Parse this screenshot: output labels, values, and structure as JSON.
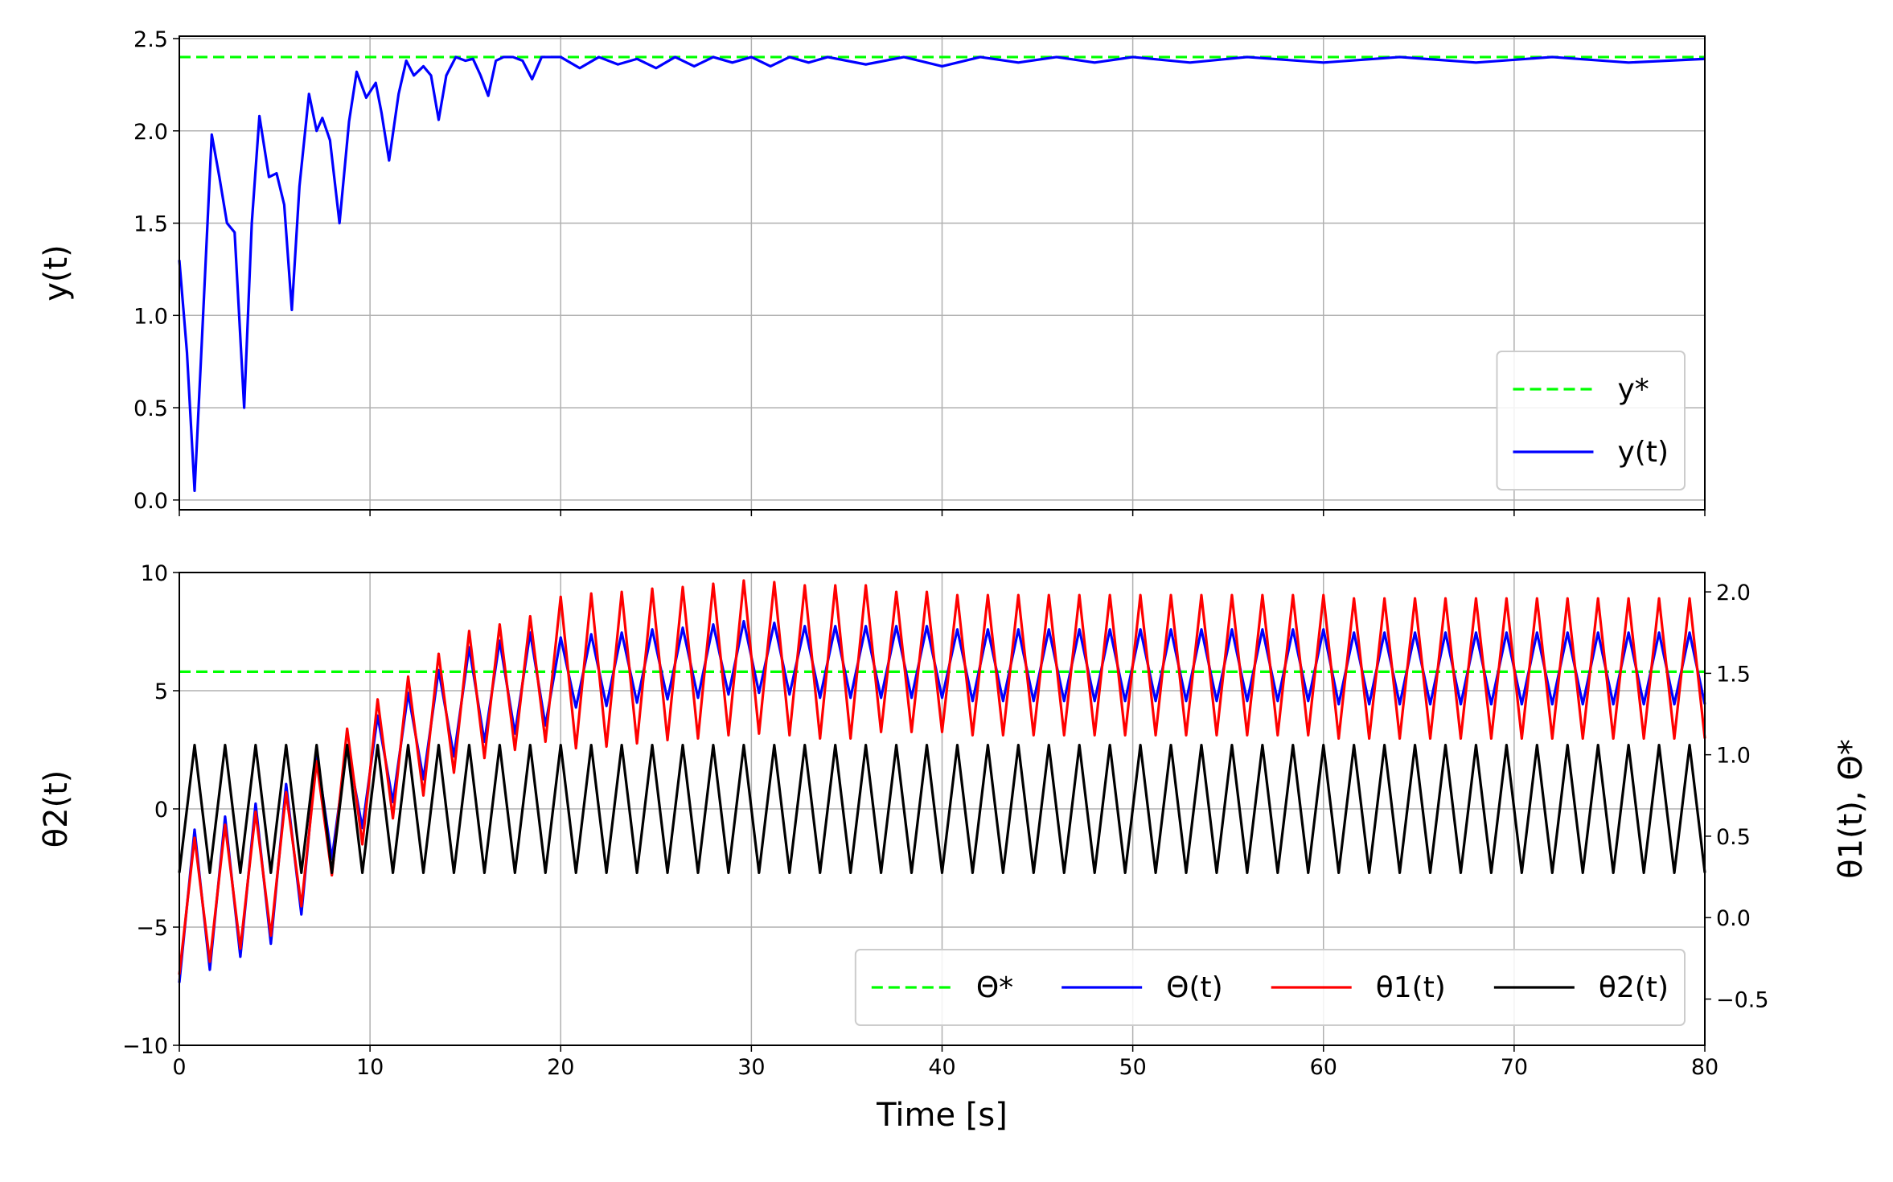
{
  "chart_data": [
    {
      "type": "line",
      "ylabel": "y(t)",
      "grid": true,
      "legend": "lower right",
      "legend_ncol": 1,
      "xlim": [
        0,
        80
      ],
      "xticks": [
        0,
        10,
        20,
        30,
        40,
        50,
        60,
        70,
        80
      ],
      "ylim": [
        -0.053,
        2.513
      ],
      "yticks": [
        {
          "value": 0,
          "label": "0.0"
        },
        0.5,
        {
          "value": 1,
          "label": "1.0"
        },
        1.5,
        {
          "value": 2,
          "label": "2.0"
        },
        2.5
      ],
      "x": [
        0,
        0.4,
        0.8,
        1.2,
        1.7,
        2.1,
        2.5,
        2.9,
        3.4,
        3.8,
        4.2,
        4.7,
        5.1,
        5.5,
        5.9,
        6.3,
        6.8,
        7.2,
        7.5,
        7.9,
        8.4,
        8.9,
        9.3,
        9.8,
        10.3,
        10.6,
        11,
        11.5,
        11.9,
        12.3,
        12.8,
        13.2,
        13.6,
        14,
        14.5,
        15,
        15.4,
        15.8,
        16.2,
        16.6,
        17,
        17.5,
        18,
        18.5,
        19,
        20,
        21,
        22,
        23,
        24,
        25,
        26,
        27,
        28,
        29,
        30,
        31,
        32,
        33,
        34,
        36,
        38,
        40,
        42,
        44,
        46,
        48,
        50,
        53,
        56,
        60,
        64,
        68,
        72,
        76,
        80
      ],
      "series": [
        {
          "name": "y*",
          "color": "#00ff00",
          "dash": true,
          "x": [
            0,
            80
          ],
          "values": [
            2.4,
            2.4
          ]
        },
        {
          "name": "y(t)",
          "color": "#0000ff",
          "dash": false,
          "values": [
            1.3,
            0.8,
            0.05,
            0.9,
            1.98,
            1.75,
            1.5,
            1.45,
            0.5,
            1.5,
            2.08,
            1.75,
            1.77,
            1.6,
            1.03,
            1.7,
            2.2,
            2.0,
            2.07,
            1.95,
            1.5,
            2.05,
            2.32,
            2.18,
            2.26,
            2.1,
            1.84,
            2.2,
            2.38,
            2.3,
            2.35,
            2.3,
            2.06,
            2.3,
            2.4,
            2.38,
            2.39,
            2.3,
            2.19,
            2.38,
            2.4,
            2.4,
            2.38,
            2.28,
            2.4,
            2.4,
            2.34,
            2.4,
            2.36,
            2.39,
            2.34,
            2.4,
            2.35,
            2.4,
            2.37,
            2.4,
            2.35,
            2.4,
            2.37,
            2.4,
            2.36,
            2.4,
            2.35,
            2.4,
            2.37,
            2.4,
            2.37,
            2.4,
            2.37,
            2.4,
            2.37,
            2.4,
            2.37,
            2.4,
            2.37,
            2.39
          ]
        }
      ]
    },
    {
      "type": "line",
      "xlabel": "Time [s]",
      "ylabel": "θ2(t)",
      "y2label": "θ1(t), Θ*",
      "grid": true,
      "legend": "lower right",
      "legend_ncol": 4,
      "xlim": [
        0,
        80
      ],
      "xticks": [
        0,
        10,
        20,
        30,
        40,
        50,
        60,
        70,
        80
      ],
      "ylim": [
        -10,
        10
      ],
      "yticks": [
        {
          "value": -10,
          "label": "−10"
        },
        {
          "value": -5,
          "label": "−5"
        },
        0,
        5,
        10
      ],
      "y2lim": [
        -0.784,
        2.119
      ],
      "y2ticks": [
        {
          "value": -0.5,
          "label": "−0.5"
        },
        {
          "value": 0,
          "label": "0.0"
        },
        0.5,
        {
          "value": 1,
          "label": "1.0"
        },
        1.5,
        {
          "value": 2,
          "label": "2.0"
        }
      ],
      "x": [
        0,
        0.8,
        1.6,
        2.4,
        3.2,
        4,
        4.8,
        5.6,
        6.4,
        7.2,
        8,
        8.8,
        9.6,
        10.4,
        11.2,
        12,
        12.8,
        13.6,
        14.4,
        15.2,
        16,
        16.8,
        17.6,
        18.4,
        19.2,
        20,
        20.8,
        21.6,
        22.4,
        23.2,
        24,
        24.8,
        25.6,
        26.4,
        27.2,
        28,
        28.8,
        29.6,
        30.4,
        31.2,
        32,
        32.8,
        33.6,
        34.4,
        35.2,
        36,
        36.8,
        37.6,
        38.4,
        39.2,
        40,
        40.8,
        41.6,
        42.4,
        43.2,
        44,
        44.8,
        45.6,
        46.4,
        47.2,
        48,
        48.8,
        49.6,
        50.4,
        51.2,
        52,
        52.8,
        53.6,
        54.4,
        55.2,
        56,
        56.8,
        57.6,
        58.4,
        59.2,
        60,
        60.8,
        61.6,
        62.4,
        63.2,
        64,
        64.8,
        65.6,
        66.4,
        67.2,
        68,
        68.8,
        69.6,
        70.4,
        71.2,
        72,
        72.8,
        73.6,
        74.4,
        75.2,
        76,
        76.8,
        77.6,
        78.4,
        79.2,
        80
      ],
      "series": [
        {
          "name": "Θ*",
          "color": "#00ff00",
          "dash": true,
          "axis": "y2",
          "x": [
            0,
            80
          ],
          "values": [
            1.51,
            1.51
          ]
        },
        {
          "name": "Θ(t)",
          "color": "#0000ff",
          "dash": false,
          "axis": "y2",
          "values": [
            -0.4,
            0.54,
            -0.32,
            0.62,
            -0.24,
            0.7,
            -0.16,
            0.82,
            0.02,
            1.01,
            0.36,
            1.06,
            0.55,
            1.24,
            0.71,
            1.38,
            0.85,
            1.52,
            0.99,
            1.66,
            1.08,
            1.7,
            1.13,
            1.75,
            1.18,
            1.72,
            1.29,
            1.74,
            1.3,
            1.75,
            1.32,
            1.77,
            1.34,
            1.78,
            1.35,
            1.8,
            1.37,
            1.82,
            1.38,
            1.81,
            1.37,
            1.79,
            1.35,
            1.79,
            1.35,
            1.79,
            1.35,
            1.79,
            1.35,
            1.79,
            1.35,
            1.77,
            1.33,
            1.77,
            1.33,
            1.77,
            1.33,
            1.77,
            1.33,
            1.77,
            1.33,
            1.77,
            1.33,
            1.77,
            1.33,
            1.77,
            1.33,
            1.77,
            1.33,
            1.77,
            1.33,
            1.77,
            1.33,
            1.77,
            1.33,
            1.77,
            1.31,
            1.75,
            1.31,
            1.75,
            1.31,
            1.75,
            1.31,
            1.75,
            1.31,
            1.75,
            1.31,
            1.75,
            1.31,
            1.75,
            1.31,
            1.75,
            1.31,
            1.75,
            1.31,
            1.75,
            1.31,
            1.75,
            1.31,
            1.75,
            1.31
          ]
        },
        {
          "name": "θ1(t)",
          "color": "#ff0000",
          "dash": false,
          "axis": "y2",
          "values": [
            -0.35,
            0.49,
            -0.27,
            0.57,
            -0.19,
            0.65,
            -0.11,
            0.77,
            0.07,
            0.96,
            0.26,
            1.16,
            0.45,
            1.34,
            0.61,
            1.48,
            0.75,
            1.62,
            0.89,
            1.76,
            0.98,
            1.8,
            1.03,
            1.85,
            1.08,
            1.97,
            1.04,
            1.99,
            1.05,
            2.0,
            1.07,
            2.02,
            1.09,
            2.03,
            1.1,
            2.05,
            1.12,
            2.07,
            1.13,
            2.06,
            1.12,
            2.04,
            1.1,
            2.04,
            1.1,
            2.04,
            1.14,
            2.0,
            1.14,
            2.0,
            1.14,
            1.98,
            1.12,
            1.98,
            1.12,
            1.98,
            1.12,
            1.98,
            1.12,
            1.98,
            1.12,
            1.98,
            1.12,
            1.98,
            1.12,
            1.98,
            1.12,
            1.98,
            1.12,
            1.98,
            1.12,
            1.98,
            1.12,
            1.98,
            1.12,
            1.98,
            1.1,
            1.96,
            1.1,
            1.96,
            1.1,
            1.96,
            1.1,
            1.96,
            1.1,
            1.96,
            1.1,
            1.96,
            1.1,
            1.96,
            1.1,
            1.96,
            1.1,
            1.96,
            1.1,
            1.96,
            1.1,
            1.96,
            1.1,
            1.96,
            1.1
          ]
        },
        {
          "name": "θ2(t)",
          "color": "#000000",
          "dash": false,
          "values": [
            -2.7,
            2.7,
            -2.7,
            2.7,
            -2.7,
            2.7,
            -2.7,
            2.7,
            -2.7,
            2.7,
            -2.7,
            2.7,
            -2.7,
            2.7,
            -2.7,
            2.7,
            -2.7,
            2.7,
            -2.7,
            2.7,
            -2.7,
            2.7,
            -2.7,
            2.7,
            -2.7,
            2.7,
            -2.7,
            2.7,
            -2.7,
            2.7,
            -2.7,
            2.7,
            -2.7,
            2.7,
            -2.7,
            2.7,
            -2.7,
            2.7,
            -2.7,
            2.7,
            -2.7,
            2.7,
            -2.7,
            2.7,
            -2.7,
            2.7,
            -2.7,
            2.7,
            -2.7,
            2.7,
            -2.7,
            2.7,
            -2.7,
            2.7,
            -2.7,
            2.7,
            -2.7,
            2.7,
            -2.7,
            2.7,
            -2.7,
            2.7,
            -2.7,
            2.7,
            -2.7,
            2.7,
            -2.7,
            2.7,
            -2.7,
            2.7,
            -2.7,
            2.7,
            -2.7,
            2.7,
            -2.7,
            2.7,
            -2.7,
            2.7,
            -2.7,
            2.7,
            -2.7,
            2.7,
            -2.7,
            2.7,
            -2.7,
            2.7,
            -2.7,
            2.7,
            -2.7,
            2.7,
            -2.7,
            2.7,
            -2.7,
            2.7,
            -2.7,
            2.7,
            -2.7,
            2.7,
            -2.7,
            2.7,
            -2.7
          ]
        }
      ]
    }
  ]
}
